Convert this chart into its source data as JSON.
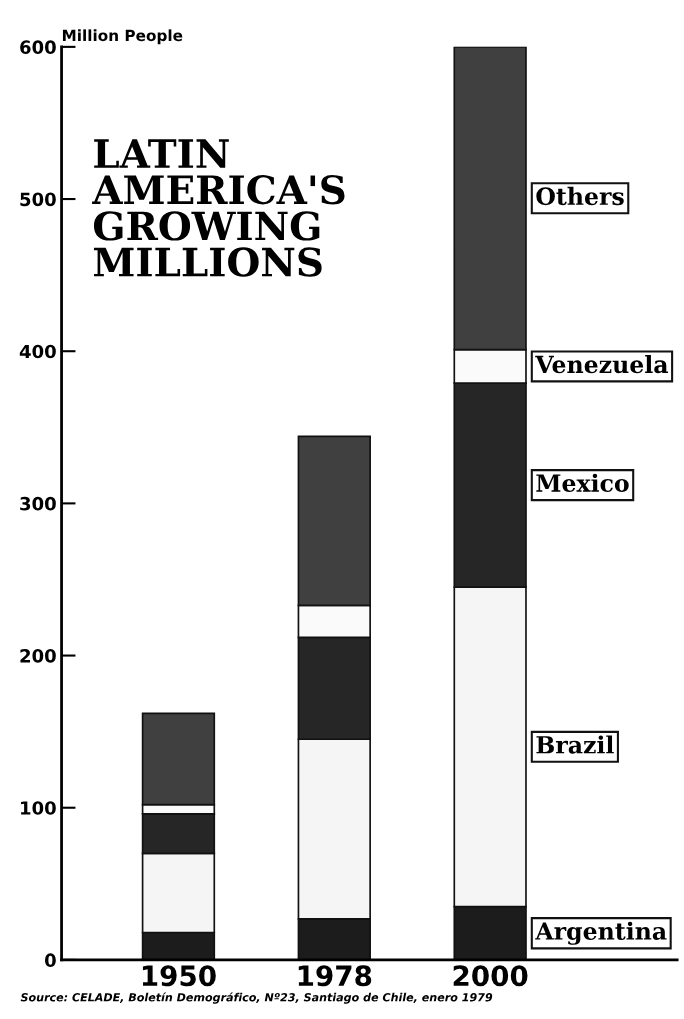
{
  "chart_data": {
    "type": "bar",
    "title": "LATIN\nAMERICA'S\nGROWING\nMILLIONS",
    "ylabel": "Million People",
    "categories": [
      "1950",
      "1978",
      "2000"
    ],
    "stacked": true,
    "ylim": [
      0,
      600
    ],
    "yticks": [
      0,
      100,
      200,
      300,
      400,
      500,
      600
    ],
    "grid": false,
    "legend": false,
    "series": [
      {
        "name": "Argentina",
        "color": "#1c1c1c",
        "values": [
          18,
          27,
          35
        ]
      },
      {
        "name": "Brazil",
        "color": "#f5f5f5",
        "values": [
          52,
          118,
          210
        ]
      },
      {
        "name": "Mexico",
        "color": "#262626",
        "values": [
          26,
          67,
          134
        ]
      },
      {
        "name": "Venezuela",
        "color": "#fafafa",
        "values": [
          6,
          21,
          22
        ]
      },
      {
        "name": "Others",
        "color": "#404040",
        "values": [
          60,
          111,
          199
        ]
      }
    ],
    "annotations": [
      "Source: CELADE, Boletín Demográfico, Nº23, Santiago de Chile, enero 1979"
    ]
  }
}
